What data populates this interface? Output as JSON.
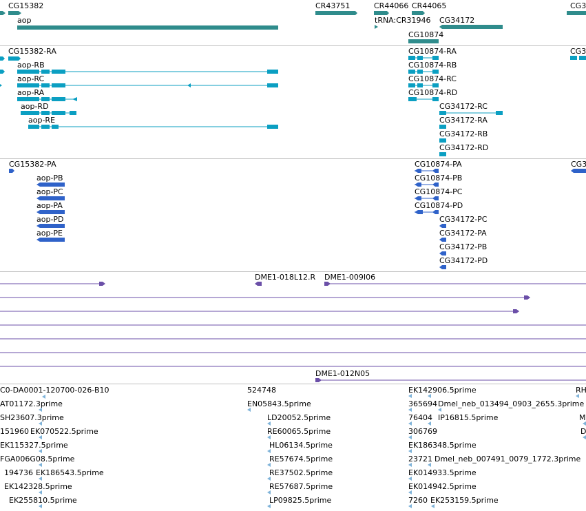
{
  "colors": {
    "gene": "#2f8c8c",
    "transcript": "#0b9fc2",
    "protein": "#2f62c9",
    "clone": "#6b4fa8",
    "est": "#7fb3d9",
    "separator": "#bfbfbf"
  },
  "tracks": {
    "genes": {
      "labels": [
        "CG15382",
        "CR43751",
        "CR44066",
        "CR44065",
        "CG3",
        "aop",
        "tRNA:CR31946",
        "CG34172",
        "CG10874"
      ]
    },
    "transcripts": {
      "labels": [
        "CG15382-RA",
        "CG10874-RA",
        "CG3",
        "aop-RB",
        "CG10874-RB",
        "aop-RC",
        "CG10874-RC",
        "aop-RA",
        "CG10874-RD",
        "aop-RD",
        "CG34172-RC",
        "aop-RE",
        "CG34172-RA",
        "CG34172-RB",
        "CG34172-RD"
      ]
    },
    "proteins": {
      "labels": [
        "CG15382-PA",
        "CG10874-PA",
        "CG3",
        "aop-PB",
        "CG10874-PB",
        "aop-PC",
        "CG10874-PC",
        "aop-PA",
        "CG10874-PD",
        "aop-PD",
        "CG34172-PC",
        "aop-PE",
        "CG34172-PA",
        "CG34172-PB",
        "CG34172-PD"
      ]
    },
    "clones": {
      "labels": [
        "DME1-018L12.R",
        "DME1-009I06",
        "DME1-012N05"
      ]
    },
    "ests": {
      "labels": [
        "C0-DA0001-120700-026-B10",
        "524748",
        "EK142906.5prime",
        "RH",
        "AT01172.3prime",
        "EN05843.5prime",
        "365694",
        "Dmel_neb_013494_0903_2655.3prime",
        "SH23607.3prime",
        "LD20052.5prime",
        "76404",
        "IP16815.5prime",
        "M",
        "151960",
        "EK070522.5prime",
        "RE60065.5prime",
        "306769",
        "D",
        "EK115327.5prime",
        "HL06134.5prime",
        "EK186348.5prime",
        "FGA006G08.5prime",
        "RE57674.5prime",
        "23721",
        "Dmel_neb_007491_0079_1772.3prime",
        "194736",
        "EK186543.5prime",
        "RE37502.5prime",
        "EK014933.5prime",
        "EK142328.5prime",
        "RE57687.5prime",
        "EK014942.5prime",
        "EK255810.5prime",
        "LP09825.5prime",
        "7260",
        "EK253159.5prime"
      ]
    }
  }
}
